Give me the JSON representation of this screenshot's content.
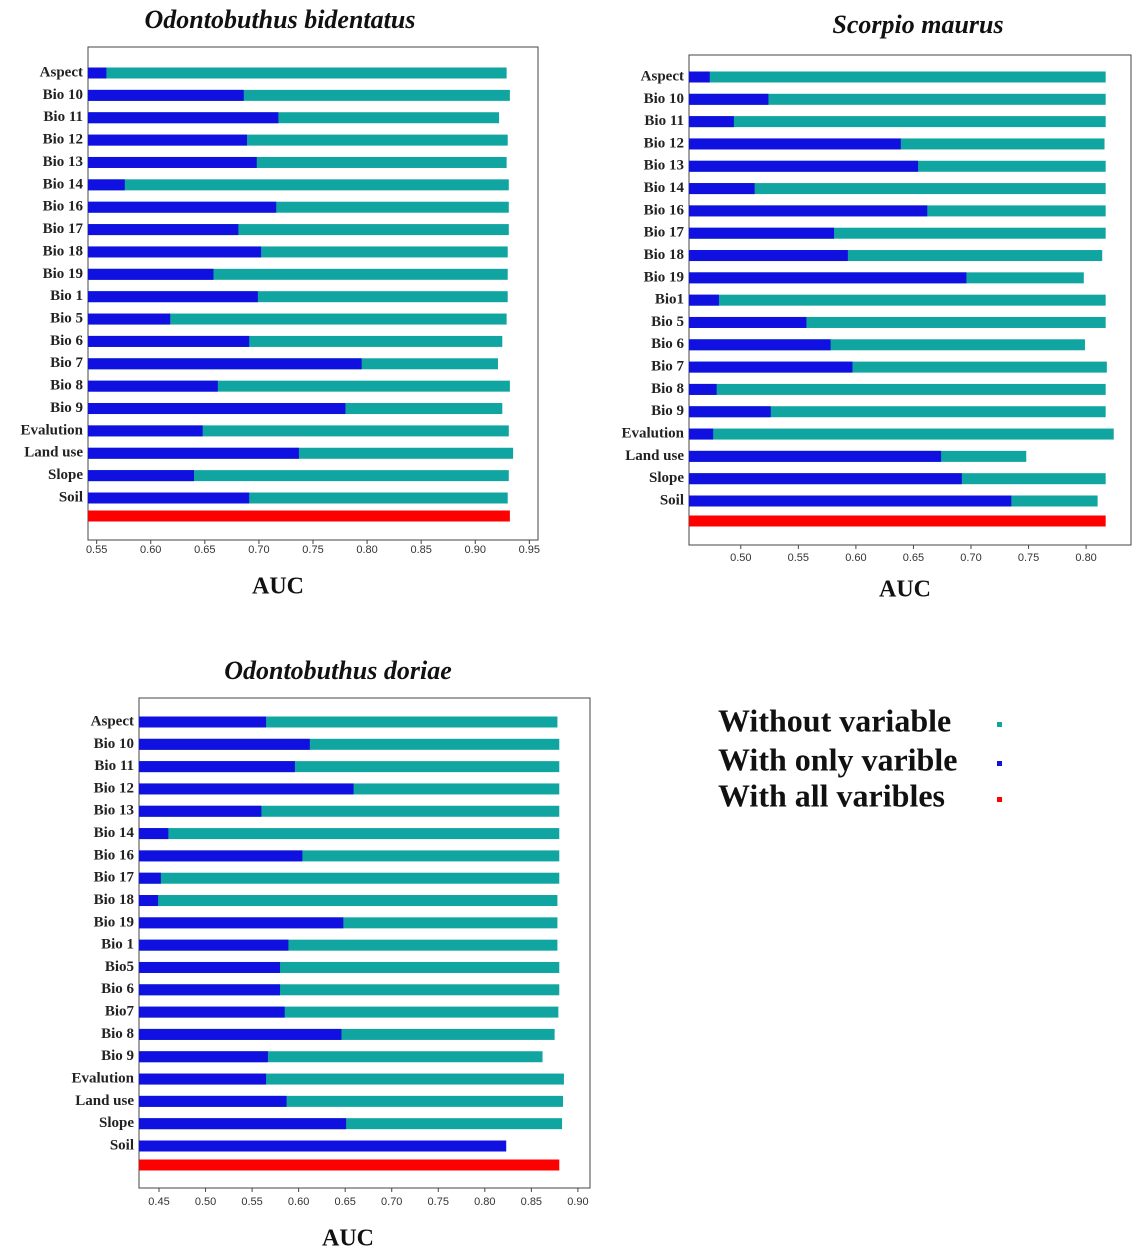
{
  "chart_data": [
    {
      "type": "bar",
      "orientation": "horizontal",
      "title": "Odontobuthus bidentatus",
      "x_label": "AUC",
      "categories": [
        "Aspect",
        "Bio 10",
        "Bio 11",
        "Bio 12",
        "Bio 13",
        "Bio 14",
        "Bio 16",
        "Bio 17",
        "Bio 18",
        "Bio 19",
        "Bio 1",
        "Bio 5",
        "Bio 6",
        "Bio 7",
        "Bio 8",
        "Bio 9",
        "Evalution",
        "Land use",
        "Slope",
        "Soil"
      ],
      "series": [
        {
          "name": "Without variable",
          "color": "#10a5a0",
          "values": [
            0.929,
            0.932,
            0.922,
            0.93,
            0.929,
            0.931,
            0.931,
            0.931,
            0.93,
            0.93,
            0.93,
            0.929,
            0.925,
            0.921,
            0.932,
            0.925,
            0.931,
            0.935,
            0.931,
            0.93
          ]
        },
        {
          "name": "With only varible",
          "color": "#1010e0",
          "values": [
            0.559,
            0.686,
            0.718,
            0.689,
            0.698,
            0.576,
            0.716,
            0.681,
            0.702,
            0.658,
            0.699,
            0.618,
            0.691,
            0.795,
            0.662,
            0.78,
            0.648,
            0.737,
            0.64,
            0.691
          ]
        }
      ],
      "all_variables": {
        "name": "With all varibles",
        "color": "#ff0000",
        "value": 0.932
      },
      "xlim": [
        0.542,
        0.958
      ],
      "xticks": [
        0.55,
        {
          "value": 0.6,
          "label": "0.60"
        },
        0.65,
        {
          "value": 0.7,
          "label": "0.70"
        },
        0.75,
        {
          "value": 0.8,
          "label": "0.80"
        },
        0.85,
        {
          "value": 0.9,
          "label": "0.90"
        },
        0.95
      ]
    },
    {
      "type": "bar",
      "orientation": "horizontal",
      "title": "Scorpio maurus",
      "x_label": "AUC",
      "categories": [
        "Aspect",
        "Bio 10",
        "Bio 11",
        "Bio 12",
        "Bio 13",
        "Bio 14",
        "Bio 16",
        "Bio 17",
        "Bio 18",
        "Bio 19",
        "Bio1",
        "Bio 5",
        "Bio 6",
        "Bio 7",
        "Bio 8",
        "Bio 9",
        "Evalution",
        "Land use",
        "Slope",
        "Soil"
      ],
      "series": [
        {
          "color": "#10a5a0",
          "values": [
            0.817,
            0.817,
            0.817,
            0.816,
            0.817,
            0.817,
            0.817,
            0.817,
            0.814,
            0.798,
            0.817,
            0.817,
            0.799,
            0.818,
            0.817,
            0.817,
            0.824,
            0.748,
            0.817,
            0.81
          ]
        },
        {
          "color": "#1010e0",
          "values": [
            0.473,
            0.524,
            0.494,
            0.639,
            0.654,
            0.512,
            0.662,
            0.581,
            0.593,
            0.696,
            0.481,
            0.557,
            0.578,
            0.597,
            0.479,
            0.526,
            0.476,
            0.674,
            0.692,
            0.735
          ]
        }
      ],
      "all_variables": {
        "color": "#ff0000",
        "value": 0.817
      },
      "xlim": [
        0.455,
        0.839
      ],
      "xticks": [
        {
          "value": 0.5,
          "label": "0.50"
        },
        0.55,
        {
          "value": 0.6,
          "label": "0.60"
        },
        0.65,
        {
          "value": 0.7,
          "label": "0.70"
        },
        0.75,
        {
          "value": 0.8,
          "label": "0.80"
        }
      ]
    },
    {
      "type": "bar",
      "orientation": "horizontal",
      "title": "Odontobuthus doriae",
      "x_label": "AUC",
      "categories": [
        "Aspect",
        "Bio 10",
        "Bio 11",
        "Bio 12",
        "Bio 13",
        "Bio 14",
        "Bio 16",
        "Bio 17",
        "Bio 18",
        "Bio 19",
        "Bio 1",
        "Bio5",
        "Bio 6",
        "Bio7",
        "Bio 8",
        "Bio 9",
        "Evalution",
        "Land use",
        "Slope",
        "Soil"
      ],
      "series": [
        {
          "color": "#10a5a0",
          "values": [
            0.878,
            0.88,
            0.88,
            0.88,
            0.88,
            0.88,
            0.88,
            0.88,
            0.878,
            0.878,
            0.878,
            0.88,
            0.88,
            0.879,
            0.875,
            0.862,
            0.885,
            0.884,
            0.883,
            0.82
          ]
        },
        {
          "color": "#1010e0",
          "values": [
            0.565,
            0.612,
            0.596,
            0.659,
            0.56,
            0.46,
            0.604,
            0.452,
            0.449,
            0.648,
            0.589,
            0.58,
            0.58,
            0.585,
            0.646,
            0.567,
            0.565,
            0.587,
            0.651,
            0.823
          ]
        }
      ],
      "all_variables": {
        "color": "#ff0000",
        "value": 0.88
      },
      "xlim": [
        0.4285,
        0.913
      ],
      "xticks": [
        0.45,
        {
          "value": 0.5,
          "label": "0.50"
        },
        0.55,
        {
          "value": 0.6,
          "label": "0.60"
        },
        0.65,
        {
          "value": 0.7,
          "label": "0.70"
        },
        0.75,
        {
          "value": 0.8,
          "label": "0.80"
        },
        0.85,
        {
          "value": 0.9,
          "label": "0.90"
        }
      ]
    }
  ]
}
